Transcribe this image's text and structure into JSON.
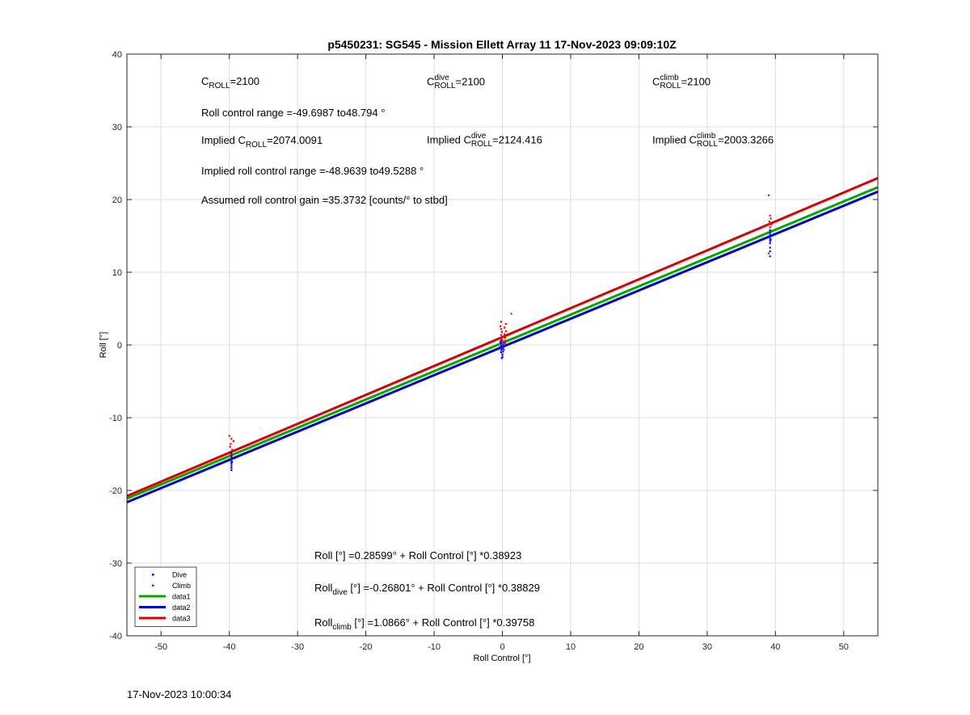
{
  "footer_timestamp": "17-Nov-2023 10:00:34",
  "annotations": {
    "c_roll": {
      "base": "C",
      "sub": "ROLL",
      "rest": "=2100"
    },
    "c_roll_dive": {
      "base": "C",
      "sup": "dive",
      "sub": "ROLL",
      "rest": "=2100"
    },
    "c_roll_climb": {
      "base": "C",
      "sup": "climb",
      "sub": "ROLL",
      "rest": "=2100"
    },
    "roll_range": "Roll control range =-49.6987 to48.794 °",
    "implied_c_roll": {
      "pre": "Implied C",
      "sub": "ROLL",
      "rest": "=2074.0091"
    },
    "implied_c_roll_dive": {
      "pre": "Implied C",
      "sup": "dive",
      "sub": "ROLL",
      "rest": "=2124.416"
    },
    "implied_c_roll_climb": {
      "pre": "Implied C",
      "sup": "climb",
      "sub": "ROLL",
      "rest": "=2003.3266"
    },
    "implied_range": "Implied roll control range =-48.9639 to49.5288 °",
    "gain": "Assumed roll control gain =35.3732 [counts/° to stbd]",
    "eq_all": "Roll [°] =0.28599° + Roll Control [°] *0.38923",
    "eq_dive": {
      "pre": "Roll",
      "sub": "dive",
      "rest": " [°] =-0.26801° + Roll Control [°] *0.38829"
    },
    "eq_climb": {
      "pre": "Roll",
      "sub": "climb",
      "rest": " [°] =1.0866° + Roll Control [°] *0.39758"
    }
  },
  "chart_data": {
    "type": "scatter",
    "title": "p5450231: SG545 - Mission Ellett Array 11 17-Nov-2023 09:09:10Z",
    "xlabel": "Roll Control [°]",
    "ylabel": "Roll [°]",
    "xlim": [
      -55,
      55
    ],
    "ylim": [
      -40,
      40
    ],
    "xticks": [
      -50,
      -40,
      -30,
      -20,
      -10,
      0,
      10,
      20,
      30,
      40,
      50
    ],
    "yticks": [
      -40,
      -30,
      -20,
      -10,
      0,
      10,
      20,
      30,
      40
    ],
    "grid": true,
    "legend_position": "bottom-left",
    "scatter_series": [
      {
        "name": "Dive",
        "color": "#0000ff",
        "points": [
          [
            -39.7,
            -14.8
          ],
          [
            -39.7,
            -15.1
          ],
          [
            -39.7,
            -15.4
          ],
          [
            -39.7,
            -15.7
          ],
          [
            -39.7,
            -16.0
          ],
          [
            -39.7,
            -16.3
          ],
          [
            -39.7,
            -16.6
          ],
          [
            -39.7,
            -16.9
          ],
          [
            -39.7,
            -17.2
          ],
          [
            -39.6,
            -15.5
          ],
          [
            -39.6,
            -16.1
          ],
          [
            -0.2,
            0.6
          ],
          [
            -0.2,
            0.2
          ],
          [
            -0.2,
            -0.1
          ],
          [
            -0.2,
            -0.4
          ],
          [
            -0.2,
            -0.7
          ],
          [
            -0.2,
            -1.0
          ],
          [
            0.0,
            -1.3
          ],
          [
            0.0,
            -1.6
          ],
          [
            0.0,
            -0.5
          ],
          [
            0.1,
            0.0
          ],
          [
            0.1,
            -0.9
          ],
          [
            -0.4,
            -0.3
          ],
          [
            -0.3,
            0.4
          ],
          [
            0.2,
            0.3
          ],
          [
            0.2,
            -0.6
          ],
          [
            -0.1,
            -1.8
          ],
          [
            39.2,
            15.8
          ],
          [
            39.2,
            15.5
          ],
          [
            39.2,
            15.2
          ],
          [
            39.2,
            14.9
          ],
          [
            39.2,
            14.6
          ],
          [
            39.2,
            14.3
          ],
          [
            39.2,
            14.0
          ],
          [
            39.2,
            13.4
          ],
          [
            39.2,
            12.9
          ],
          [
            39.2,
            12.2
          ],
          [
            39.3,
            15.0
          ],
          [
            39.3,
            14.5
          ]
        ]
      },
      {
        "name": "Climb",
        "color": "#ff0000",
        "points": [
          [
            -40.0,
            -12.5
          ],
          [
            -39.7,
            -12.9
          ],
          [
            -39.4,
            -13.2
          ],
          [
            -39.8,
            -13.6
          ],
          [
            -39.9,
            -14.0
          ],
          [
            -39.6,
            -14.4
          ],
          [
            -39.8,
            -15.0
          ],
          [
            -0.2,
            3.2
          ],
          [
            -0.3,
            2.6
          ],
          [
            -0.2,
            2.2
          ],
          [
            -0.1,
            1.8
          ],
          [
            -0.2,
            1.4
          ],
          [
            -0.3,
            1.0
          ],
          [
            0.0,
            0.6
          ],
          [
            0.3,
            2.4
          ],
          [
            0.3,
            1.5
          ],
          [
            0.4,
            1.0
          ],
          [
            0.4,
            0.2
          ],
          [
            0.5,
            2.9
          ],
          [
            0.5,
            1.9
          ],
          [
            1.3,
            4.3
          ],
          [
            0.2,
            1.2
          ],
          [
            0.4,
            0.6
          ],
          [
            -0.1,
            0.8
          ],
          [
            39.0,
            20.6
          ],
          [
            39.2,
            17.8
          ],
          [
            39.3,
            17.4
          ],
          [
            39.1,
            17.0
          ],
          [
            39.4,
            16.6
          ],
          [
            39.2,
            16.2
          ],
          [
            38.9,
            16.6
          ],
          [
            39.0,
            12.6
          ]
        ]
      }
    ],
    "line_series": [
      {
        "name": "data1",
        "color": "#00aa00",
        "intercept": 0.28599,
        "slope": 0.38923
      },
      {
        "name": "data2",
        "color": "#0000cc",
        "intercept": -0.26801,
        "slope": 0.38829
      },
      {
        "name": "data3",
        "color": "#dd0000",
        "intercept": 1.0866,
        "slope": 0.39758
      }
    ]
  }
}
